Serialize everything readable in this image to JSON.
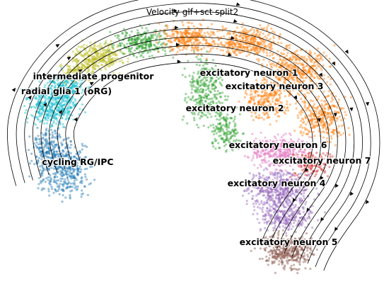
{
  "chart_data": {
    "type": "scatter",
    "title": "Velocity glf+sct split2",
    "xlabel": "",
    "ylabel": "",
    "grid": false,
    "axes": "off",
    "legend": "on data",
    "overlay": "velocity stream lines with arrowheads",
    "clusters": [
      {
        "name": "intermediate progenitor",
        "color": "#bcbd22"
      },
      {
        "name": "radial glia 1 (oRG)",
        "color": "#17becf"
      },
      {
        "name": "cycling RG/IPC",
        "color": "#1f77b4"
      },
      {
        "name": "excitatory neuron 1",
        "color": "#ff7f0e"
      },
      {
        "name": "excitatory neuron 3",
        "color": "#ff7f0e"
      },
      {
        "name": "excitatory neuron 2",
        "color": "#2ca02c"
      },
      {
        "name": "excitatory neuron 6",
        "color": "#e377c2"
      },
      {
        "name": "excitatory neuron 7",
        "color": "#d62728"
      },
      {
        "name": "excitatory neuron 4",
        "color": "#9467bd"
      },
      {
        "name": "excitatory neuron 5",
        "color": "#8c564b"
      }
    ]
  }
}
